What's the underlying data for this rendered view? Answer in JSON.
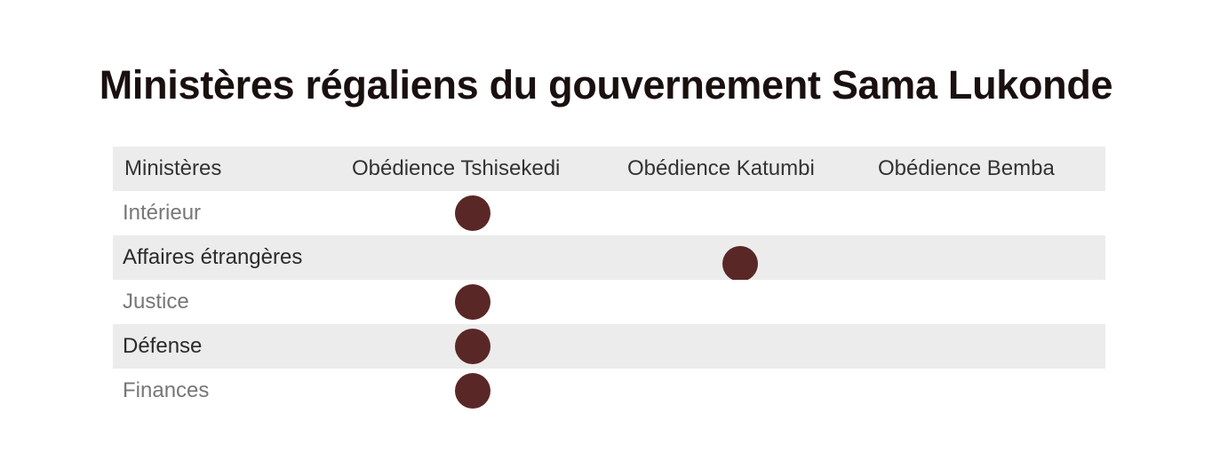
{
  "title": "Ministères régaliens du gouvernement Sama Lukonde",
  "table": {
    "headers": [
      "Ministères",
      "Obédience Tshisekedi",
      "Obédience Katumbi",
      "Obédience Bemba"
    ],
    "rows": [
      {
        "ministere": "Intérieur",
        "obedience": "Tshisekedi"
      },
      {
        "ministere": "Affaires étrangères",
        "obedience": "Katumbi"
      },
      {
        "ministere": "Justice",
        "obedience": "Tshisekedi"
      },
      {
        "ministere": "Défense",
        "obedience": "Tshisekedi"
      },
      {
        "ministere": "Finances",
        "obedience": "Tshisekedi"
      }
    ]
  },
  "colors": {
    "marker": "#5a2727",
    "header_bg": "#ececec",
    "stripe_bg": "#ececec"
  }
}
